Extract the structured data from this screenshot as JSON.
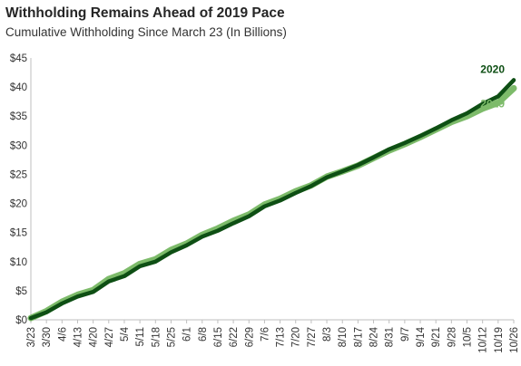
{
  "chart_data": {
    "type": "line",
    "title": "Withholding Remains Ahead of 2019 Pace",
    "subtitle": "Cumulative Withholding Since March 23  (In Billions)",
    "xlabel": "",
    "ylabel": "",
    "ylim": [
      0,
      45
    ],
    "yticks": [
      "$0",
      "$5",
      "$10",
      "$15",
      "$20",
      "$25",
      "$30",
      "$35",
      "$40",
      "$45"
    ],
    "categories": [
      "3/23",
      "3/30",
      "4/6",
      "4/13",
      "4/20",
      "4/27",
      "5/4",
      "5/11",
      "5/18",
      "5/25",
      "6/1",
      "6/8",
      "6/15",
      "6/22",
      "6/29",
      "7/6",
      "7/13",
      "7/20",
      "7/27",
      "8/3",
      "8/10",
      "8/17",
      "8/24",
      "8/31",
      "9/7",
      "9/14",
      "9/21",
      "9/28",
      "10/5",
      "10/12",
      "10/19",
      "10/26"
    ],
    "grid": false,
    "series": [
      {
        "name": "2019",
        "color": "#7dbb6a",
        "values": [
          0.3,
          1.5,
          3.1,
          4.3,
          5.1,
          7.0,
          8.0,
          9.6,
          10.4,
          12.0,
          13.1,
          14.6,
          15.7,
          17.0,
          18.1,
          19.8,
          20.8,
          22.1,
          23.1,
          24.6,
          25.5,
          26.5,
          27.8,
          29.1,
          30.2,
          31.4,
          32.7,
          34.0,
          35.0,
          36.3,
          37.3,
          39.8
        ]
      },
      {
        "name": "2020",
        "color": "#0e4f14",
        "values": [
          0.3,
          1.3,
          2.8,
          4.0,
          4.8,
          6.6,
          7.5,
          9.2,
          10.0,
          11.6,
          12.8,
          14.3,
          15.3,
          16.6,
          17.8,
          19.5,
          20.5,
          21.8,
          23.0,
          24.5,
          25.5,
          26.6,
          27.9,
          29.3,
          30.4,
          31.6,
          32.9,
          34.3,
          35.5,
          37.1,
          38.4,
          41.2
        ]
      }
    ]
  }
}
